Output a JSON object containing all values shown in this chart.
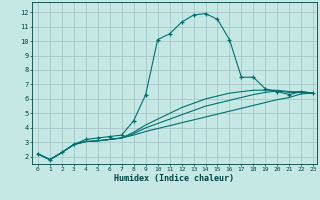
{
  "xlabel": "Humidex (Indice chaleur)",
  "background_color": "#c5e8e5",
  "grid_color": "#aacccc",
  "line_color": "#007070",
  "xlim": [
    -0.5,
    23.3
  ],
  "ylim": [
    1.5,
    12.7
  ],
  "xticks": [
    0,
    1,
    2,
    3,
    4,
    5,
    6,
    7,
    8,
    9,
    10,
    11,
    12,
    13,
    14,
    15,
    16,
    17,
    18,
    19,
    20,
    21,
    22,
    23
  ],
  "yticks": [
    2,
    3,
    4,
    5,
    6,
    7,
    8,
    9,
    10,
    11,
    12
  ],
  "series": [
    {
      "x": [
        0,
        1,
        2,
        3,
        4,
        5,
        6,
        7,
        8,
        9,
        10,
        11,
        12,
        13,
        14,
        15,
        16,
        17,
        18,
        19,
        20,
        21,
        22,
        23
      ],
      "y": [
        2.2,
        1.8,
        2.3,
        2.85,
        3.2,
        3.3,
        3.4,
        3.5,
        4.5,
        6.3,
        10.1,
        10.5,
        11.3,
        11.8,
        11.9,
        11.5,
        10.1,
        7.5,
        7.5,
        6.7,
        6.5,
        6.3,
        6.5,
        6.4
      ],
      "marker": "+"
    },
    {
      "x": [
        0,
        1,
        2,
        3,
        4,
        5,
        6,
        7,
        8,
        9,
        10,
        11,
        12,
        13,
        14,
        15,
        16,
        17,
        18,
        19,
        20,
        21,
        22,
        23
      ],
      "y": [
        2.2,
        1.8,
        2.3,
        2.85,
        3.05,
        3.1,
        3.2,
        3.3,
        3.5,
        3.75,
        3.95,
        4.15,
        4.35,
        4.55,
        4.75,
        4.95,
        5.15,
        5.35,
        5.55,
        5.75,
        5.95,
        6.1,
        6.35,
        6.4
      ],
      "marker": null
    },
    {
      "x": [
        0,
        1,
        2,
        3,
        4,
        5,
        6,
        7,
        8,
        9,
        10,
        11,
        12,
        13,
        14,
        15,
        16,
        17,
        18,
        19,
        20,
        21,
        22,
        23
      ],
      "y": [
        2.2,
        1.8,
        2.3,
        2.85,
        3.05,
        3.1,
        3.2,
        3.3,
        3.6,
        4.0,
        4.3,
        4.6,
        4.9,
        5.2,
        5.5,
        5.7,
        5.9,
        6.1,
        6.3,
        6.45,
        6.55,
        6.45,
        6.45,
        6.4
      ],
      "marker": null
    },
    {
      "x": [
        0,
        1,
        2,
        3,
        4,
        5,
        6,
        7,
        8,
        9,
        10,
        11,
        12,
        13,
        14,
        15,
        16,
        17,
        18,
        19,
        20,
        21,
        22,
        23
      ],
      "y": [
        2.2,
        1.8,
        2.3,
        2.85,
        3.05,
        3.1,
        3.2,
        3.3,
        3.7,
        4.2,
        4.6,
        5.0,
        5.4,
        5.7,
        6.0,
        6.2,
        6.4,
        6.5,
        6.6,
        6.6,
        6.6,
        6.5,
        6.5,
        6.4
      ],
      "marker": null
    }
  ]
}
